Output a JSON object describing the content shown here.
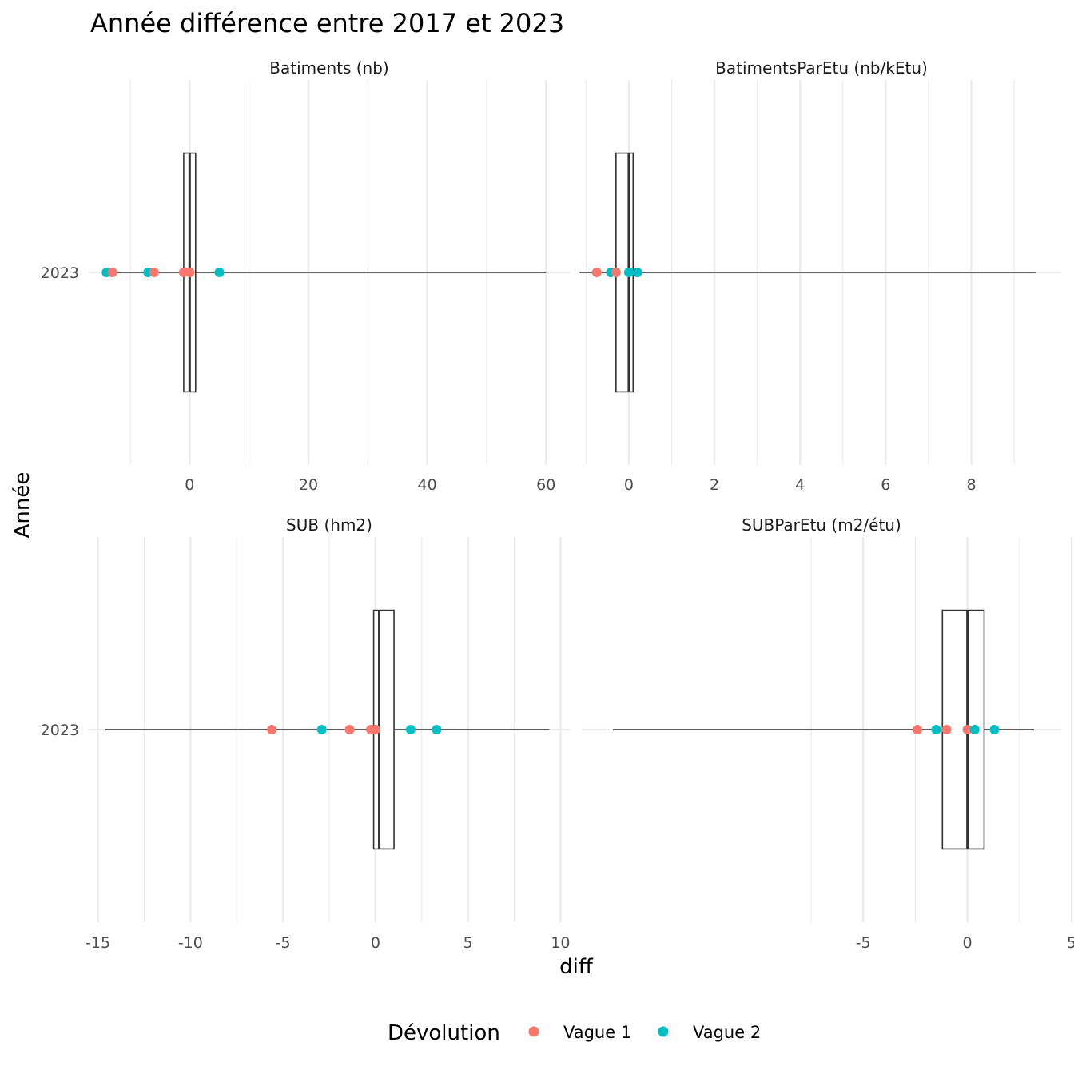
{
  "chart_data": {
    "type": "boxplot",
    "title": "Année différence entre 2017 et 2023",
    "xlabel": "diff",
    "ylabel": "Année",
    "legend": {
      "title": "Dévolution",
      "position": "bottom",
      "entries": [
        {
          "label": "Vague 1",
          "color": "#F8766D"
        },
        {
          "label": "Vague 2",
          "color": "#00BFC4"
        }
      ]
    },
    "panels": [
      {
        "strip": "Batiments (nb)",
        "category": "2023",
        "xlim": [
          -17,
          64
        ],
        "major_ticks": [
          0,
          20,
          40,
          60
        ],
        "tick_labels": [
          "0",
          "20",
          "40",
          "60"
        ],
        "minor_ticks": [
          -10,
          10,
          30,
          50
        ],
        "box": {
          "whisker_low": -14,
          "q1": -1,
          "median": 0,
          "q3": 1,
          "whisker_high": 60
        },
        "points": [
          {
            "x": -14,
            "group": "Vague 2"
          },
          {
            "x": -13,
            "group": "Vague 1"
          },
          {
            "x": -7,
            "group": "Vague 2"
          },
          {
            "x": -6,
            "group": "Vague 1"
          },
          {
            "x": -1,
            "group": "Vague 1"
          },
          {
            "x": 0,
            "group": "Vague 1"
          },
          {
            "x": 5,
            "group": "Vague 2"
          }
        ]
      },
      {
        "strip": "BatimentsParEtu (nb/kEtu)",
        "category": "2023",
        "xlim": [
          -1.1,
          10.1
        ],
        "major_ticks": [
          0,
          2,
          4,
          6,
          8
        ],
        "tick_labels": [
          "0",
          "2",
          "4",
          "6",
          "8"
        ],
        "minor_ticks": [
          -1,
          1,
          3,
          5,
          7,
          9
        ],
        "box": {
          "whisker_low": -1.15,
          "q1": -0.3,
          "median": 0,
          "q3": 0.1,
          "whisker_high": 9.5
        },
        "points": [
          {
            "x": -0.75,
            "group": "Vague 1"
          },
          {
            "x": -0.42,
            "group": "Vague 2"
          },
          {
            "x": -0.3,
            "group": "Vague 1"
          },
          {
            "x": 0,
            "group": "Vague 2"
          },
          {
            "x": 0.2,
            "group": "Vague 2"
          }
        ]
      },
      {
        "strip": "SUB (hm2)",
        "category": "2023",
        "xlim": [
          -15.5,
          10.5
        ],
        "major_ticks": [
          -15,
          -10,
          -5,
          0,
          5,
          10
        ],
        "tick_labels": [
          "-15",
          "-10",
          "-5",
          "0",
          "5",
          "10"
        ],
        "minor_ticks": [
          -12.5,
          -7.5,
          -2.5,
          2.5,
          7.5
        ],
        "box": {
          "whisker_low": -14.6,
          "q1": -0.1,
          "median": 0.2,
          "q3": 1.0,
          "whisker_high": 9.4
        },
        "points": [
          {
            "x": -5.6,
            "group": "Vague 1"
          },
          {
            "x": -2.9,
            "group": "Vague 2"
          },
          {
            "x": -1.4,
            "group": "Vague 1"
          },
          {
            "x": -0.25,
            "group": "Vague 1"
          },
          {
            "x": 0,
            "group": "Vague 1"
          },
          {
            "x": 1.9,
            "group": "Vague 2"
          },
          {
            "x": 3.3,
            "group": "Vague 2"
          }
        ]
      },
      {
        "strip": "SUBParEtu (m2/étu)",
        "category": "2023",
        "xlim": [
          -18.5,
          4.5
        ],
        "major_ticks": [
          -5,
          0,
          5
        ],
        "tick_labels": [
          "-5",
          "0",
          "5"
        ],
        "minor_ticks": [
          -7.5,
          -2.5,
          2.5,
          7.5
        ],
        "box": {
          "whisker_low": -17,
          "q1": -1.2,
          "median": 0,
          "q3": 0.8,
          "whisker_high": 3.2
        },
        "points": [
          {
            "x": -2.4,
            "group": "Vague 1"
          },
          {
            "x": -1.5,
            "group": "Vague 2"
          },
          {
            "x": -1.0,
            "group": "Vague 1"
          },
          {
            "x": 0,
            "group": "Vague 1"
          },
          {
            "x": 0.35,
            "group": "Vague 2"
          },
          {
            "x": 1.3,
            "group": "Vague 2"
          }
        ]
      }
    ]
  }
}
